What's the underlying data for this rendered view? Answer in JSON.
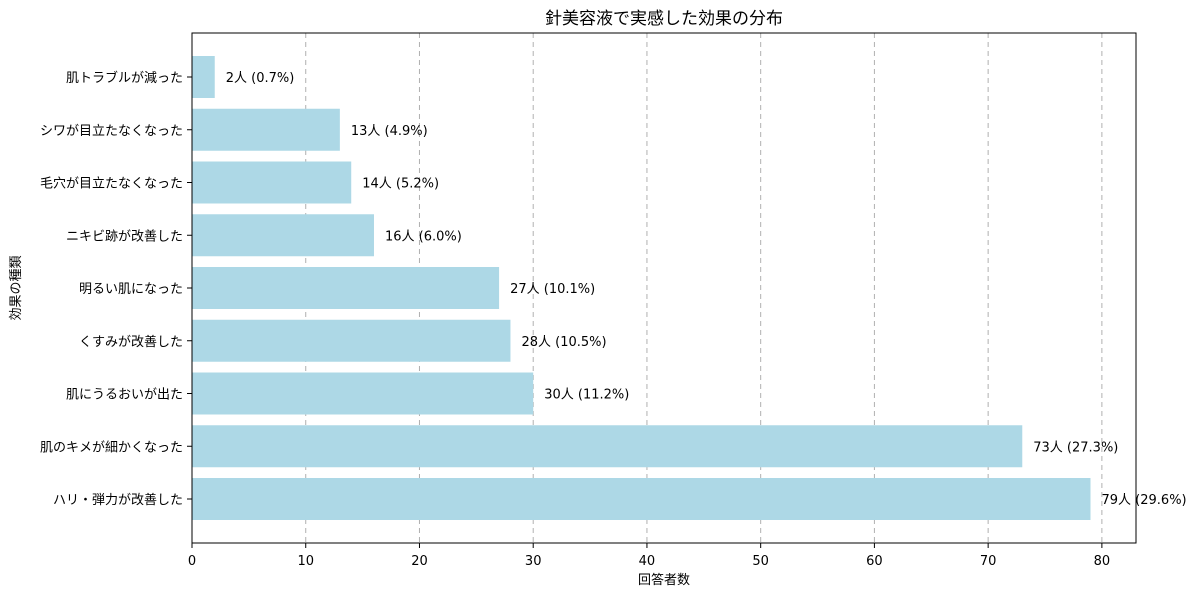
{
  "chart_data": {
    "type": "bar",
    "orientation": "horizontal",
    "title": "針美容液で実感した効果の分布",
    "xlabel": "回答者数",
    "ylabel": "効果の種類",
    "xlim": [
      0,
      83
    ],
    "xticks": [
      0,
      10,
      20,
      30,
      40,
      50,
      60,
      70,
      80
    ],
    "grid": "x-dashed",
    "bar_color": "#add8e6",
    "categories": [
      "肌トラブルが減った",
      "シワが目立たなくなった",
      "毛穴が目立たなくなった",
      "ニキビ跡が改善した",
      "明るい肌になった",
      "くすみが改善した",
      "肌にうるおいが出た",
      "肌のキメが細かくなった",
      "ハリ・弾力が改善した"
    ],
    "values": [
      2,
      13,
      14,
      16,
      27,
      28,
      30,
      73,
      79
    ],
    "value_labels": [
      "2人 (0.7%)",
      "13人 (4.9%)",
      "14人 (5.2%)",
      "16人 (6.0%)",
      "27人 (10.1%)",
      "28人 (10.5%)",
      "30人 (11.2%)",
      "73人 (27.3%)",
      "79人 (29.6%)"
    ]
  }
}
